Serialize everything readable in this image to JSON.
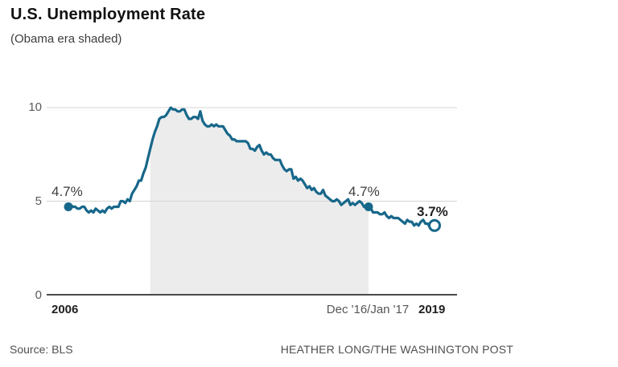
{
  "header": {
    "title": "U.S. Unemployment Rate",
    "subtitle": "(Obama era shaded)"
  },
  "footer": {
    "source": "Source: BLS",
    "credit": "HEATHER LONG/THE WASHINGTON POST"
  },
  "chart_data": {
    "type": "line",
    "title": "U.S. Unemployment Rate",
    "subtitle": "(Obama era shaded)",
    "x_frequency": "monthly",
    "x_start": "Jan 2006",
    "x_end": "Jun 2019",
    "ylim": [
      0,
      10
    ],
    "y_ticks": [
      "0",
      "5",
      "10"
    ],
    "x_ticks": [
      "2006",
      "Dec '16/Jan '17",
      "2019"
    ],
    "grid": true,
    "legend": "none",
    "shaded_region": {
      "label": "Obama era",
      "start": "Jan 2009",
      "end": "Jan 2017",
      "start_index": 36,
      "end_index": 132
    },
    "series": [
      {
        "name": "U.S. unemployment rate (%)",
        "values": [
          4.7,
          4.8,
          4.7,
          4.7,
          4.6,
          4.6,
          4.7,
          4.7,
          4.5,
          4.4,
          4.5,
          4.4,
          4.6,
          4.5,
          4.4,
          4.5,
          4.4,
          4.6,
          4.7,
          4.6,
          4.7,
          4.7,
          4.7,
          5.0,
          5.0,
          4.9,
          5.1,
          5.0,
          5.4,
          5.6,
          5.8,
          6.1,
          6.1,
          6.5,
          6.8,
          7.3,
          7.8,
          8.3,
          8.7,
          9.0,
          9.4,
          9.5,
          9.5,
          9.6,
          9.8,
          10.0,
          9.9,
          9.9,
          9.8,
          9.8,
          9.9,
          9.9,
          9.6,
          9.4,
          9.4,
          9.5,
          9.5,
          9.4,
          9.8,
          9.3,
          9.1,
          9.0,
          9.0,
          9.1,
          9.0,
          9.1,
          9.0,
          9.0,
          9.0,
          8.8,
          8.6,
          8.5,
          8.3,
          8.3,
          8.2,
          8.2,
          8.2,
          8.2,
          8.2,
          8.1,
          7.8,
          7.8,
          7.7,
          7.9,
          8.0,
          7.7,
          7.5,
          7.6,
          7.5,
          7.5,
          7.3,
          7.2,
          7.2,
          7.2,
          6.9,
          6.7,
          6.6,
          6.7,
          6.7,
          6.2,
          6.3,
          6.1,
          6.2,
          6.1,
          5.9,
          5.7,
          5.8,
          5.6,
          5.7,
          5.5,
          5.4,
          5.4,
          5.6,
          5.3,
          5.2,
          5.1,
          5.0,
          5.0,
          5.1,
          5.0,
          4.8,
          4.9,
          5.0,
          5.1,
          4.8,
          4.9,
          4.8,
          4.9,
          5.0,
          4.9,
          4.7,
          4.7,
          4.7,
          4.6,
          4.4,
          4.4,
          4.4,
          4.3,
          4.3,
          4.4,
          4.2,
          4.1,
          4.2,
          4.1,
          4.1,
          4.1,
          4.0,
          3.9,
          3.8,
          4.0,
          3.9,
          3.9,
          3.7,
          3.8,
          3.7,
          3.9,
          4.0,
          3.8,
          3.8,
          3.6,
          3.6,
          3.7
        ]
      }
    ],
    "annotations": [
      {
        "text": "4.7%",
        "index": 0,
        "value": 4.7,
        "style": "regular",
        "marker": "filled-dot"
      },
      {
        "text": "4.7%",
        "index": 132,
        "value": 4.7,
        "style": "regular",
        "marker": "filled-dot"
      },
      {
        "text": "3.7%",
        "index": 161,
        "value": 3.7,
        "style": "bold",
        "marker": "open-dot"
      }
    ],
    "colors": {
      "line": "#17678A",
      "area": "#ECECEC",
      "grid": "#D4D4D4",
      "axis": "#4A4A4A"
    }
  }
}
